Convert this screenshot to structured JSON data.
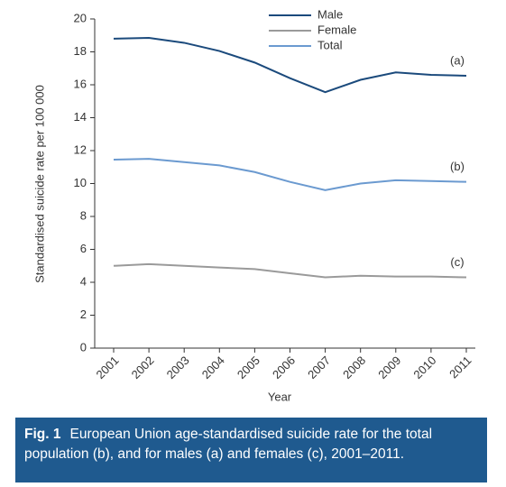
{
  "chart_data": {
    "type": "line",
    "categories": [
      "2001",
      "2002",
      "2003",
      "2004",
      "2005",
      "2006",
      "2007",
      "2008",
      "2009",
      "2010",
      "2011"
    ],
    "series": [
      {
        "name": "Male",
        "color": "#1b4a7c",
        "values": [
          18.8,
          18.85,
          18.55,
          18.05,
          17.35,
          16.4,
          15.55,
          16.3,
          16.75,
          16.6,
          16.55
        ]
      },
      {
        "name": "Female",
        "color": "#9a9a9a",
        "values": [
          5.0,
          5.1,
          5.0,
          4.9,
          4.8,
          4.55,
          4.3,
          4.4,
          4.35,
          4.35,
          4.3
        ]
      },
      {
        "name": "Total",
        "color": "#6b9ad0",
        "values": [
          11.45,
          11.5,
          11.3,
          11.1,
          10.7,
          10.1,
          9.6,
          10.0,
          10.2,
          10.15,
          10.1
        ]
      }
    ],
    "ylim": [
      0,
      20
    ],
    "yticks": [
      0,
      2,
      4,
      6,
      8,
      10,
      12,
      14,
      16,
      18,
      20
    ],
    "xlabel": "Year",
    "ylabel": "Standardised suicide rate per 100 000",
    "annotations": [
      "(a)",
      "(c)",
      "(b)"
    ],
    "grid": false,
    "caption": {
      "label": "Fig. 1",
      "text": "European Union age-standardised suicide rate for the total population (b), and for males (a) and females (c), 2001–2011."
    }
  }
}
